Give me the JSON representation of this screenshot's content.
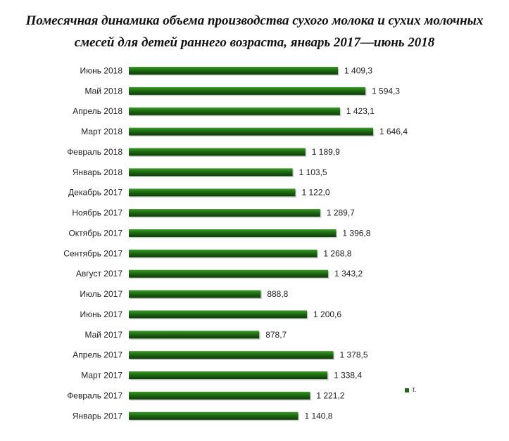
{
  "title_line1": "Помесячная динамика объема производства сухого молока и сухих молочных",
  "title_line2": "смесей для детей раннего возраста, январь 2017—июнь 2018",
  "legend_label": "т.",
  "colors": {
    "bar": "#1e6b12",
    "bar_highlight": "#3d9a2a",
    "bar_shadow": "#0d3b08"
  },
  "chart_data": {
    "type": "bar",
    "orientation": "horizontal",
    "title": "Помесячная динамика объема производства сухого молока и сухих молочных смесей для детей раннего возраста, январь 2017—июнь 2018",
    "xlim": [
      0,
      1700
    ],
    "grid": false,
    "legend_position": "right",
    "categories": [
      "Июнь 2018",
      "Май 2018",
      "Апрель 2018",
      "Март 2018",
      "Февраль 2018",
      "Январь 2018",
      "Декабрь 2017",
      "Ноябрь 2017",
      "Октябрь 2017",
      "Сентябрь 2017",
      "Август 2017",
      "Июль 2017",
      "Июнь 2017",
      "Май 2017",
      "Апрель 2017",
      "Март 2017",
      "Февраль 2017",
      "Январь 2017"
    ],
    "series": [
      {
        "name": "т.",
        "values": [
          1409.3,
          1594.3,
          1423.1,
          1646.4,
          1189.9,
          1103.5,
          1122.0,
          1289.7,
          1396.8,
          1268.8,
          1343.2,
          888.8,
          1200.6,
          878.7,
          1378.5,
          1338.4,
          1221.2,
          1140.8
        ],
        "value_labels": [
          "1 409,3",
          "1 594,3",
          "1 423,1",
          "1 646,4",
          "1 189,9",
          "1 103,5",
          "1 122,0",
          "1 289,7",
          "1 396,8",
          "1 268,8",
          "1 343,2",
          "888,8",
          "1 200,6",
          "878,7",
          "1 378,5",
          "1 338,4",
          "1 221,2",
          "1 140,8"
        ]
      }
    ]
  }
}
